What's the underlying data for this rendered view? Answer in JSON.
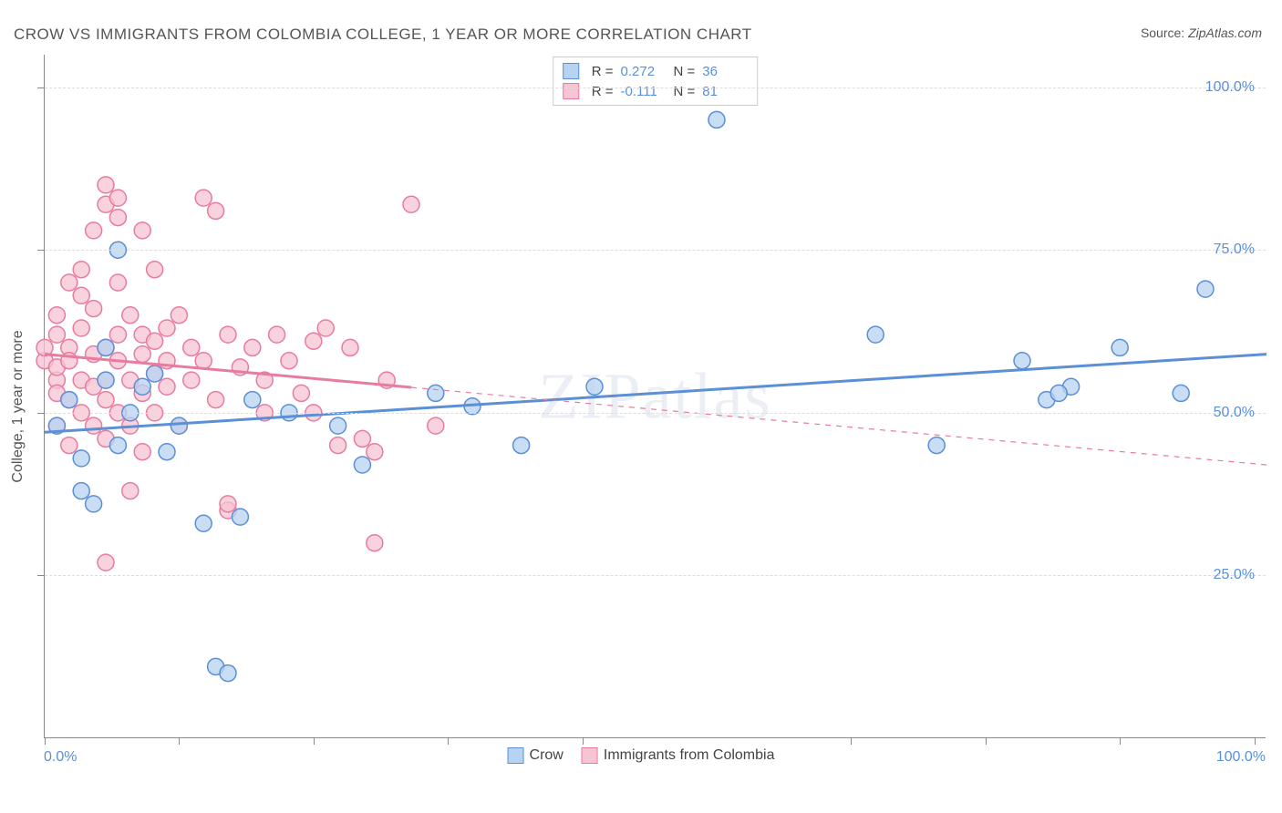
{
  "title": "CROW VS IMMIGRANTS FROM COLOMBIA COLLEGE, 1 YEAR OR MORE CORRELATION CHART",
  "source_label": "Source: ",
  "source_value": "ZipAtlas.com",
  "watermark": "ZIPatlas",
  "axis": {
    "y_title": "College, 1 year or more",
    "x_min_label": "0.0%",
    "x_max_label": "100.0%",
    "xlim": [
      0,
      100
    ],
    "ylim": [
      0,
      105
    ],
    "y_ticks": [
      25,
      50,
      75,
      100
    ],
    "y_tick_labels": [
      "25.0%",
      "50.0%",
      "75.0%",
      "100.0%"
    ],
    "x_ticks": [
      0,
      11,
      22,
      33,
      44,
      66,
      77,
      88,
      99
    ],
    "grid_color": "#dddddd",
    "axis_color": "#888888",
    "label_color": "#5b8fd6",
    "label_fontsize": 16
  },
  "series": [
    {
      "name": "Crow",
      "fill": "#b7d3f2",
      "stroke": "#5b8fd6",
      "marker_r": 9,
      "marker_opacity": 0.75,
      "r_value": "0.272",
      "n_value": "36",
      "trend": {
        "x1": 0,
        "y1": 47,
        "x2": 100,
        "y2": 59,
        "width": 3,
        "dash_after_x": null
      },
      "points": [
        [
          1,
          48
        ],
        [
          2,
          52
        ],
        [
          3,
          43
        ],
        [
          3,
          38
        ],
        [
          4,
          36
        ],
        [
          5,
          55
        ],
        [
          5,
          60
        ],
        [
          6,
          45
        ],
        [
          6,
          75
        ],
        [
          7,
          50
        ],
        [
          8,
          54
        ],
        [
          9,
          56
        ],
        [
          10,
          44
        ],
        [
          11,
          48
        ],
        [
          13,
          33
        ],
        [
          14,
          11
        ],
        [
          15,
          10
        ],
        [
          16,
          34
        ],
        [
          17,
          52
        ],
        [
          20,
          50
        ],
        [
          24,
          48
        ],
        [
          26,
          42
        ],
        [
          32,
          53
        ],
        [
          35,
          51
        ],
        [
          39,
          45
        ],
        [
          45,
          54
        ],
        [
          55,
          95
        ],
        [
          68,
          62
        ],
        [
          73,
          45
        ],
        [
          80,
          58
        ],
        [
          82,
          52
        ],
        [
          84,
          54
        ],
        [
          83,
          53
        ],
        [
          88,
          60
        ],
        [
          93,
          53
        ],
        [
          95,
          69
        ]
      ]
    },
    {
      "name": "Immigrants from Colombia",
      "fill": "#f6c4d2",
      "stroke": "#e87ba0",
      "marker_r": 9,
      "marker_opacity": 0.75,
      "r_value": "-0.111",
      "n_value": "81",
      "trend": {
        "x1": 0,
        "y1": 59,
        "x2": 100,
        "y2": 42,
        "width": 3,
        "dash_after_x": 30
      },
      "points": [
        [
          0,
          58
        ],
        [
          0,
          60
        ],
        [
          1,
          55
        ],
        [
          1,
          62
        ],
        [
          1,
          57
        ],
        [
          1,
          53
        ],
        [
          1,
          48
        ],
        [
          1,
          65
        ],
        [
          2,
          60
        ],
        [
          2,
          70
        ],
        [
          2,
          52
        ],
        [
          2,
          45
        ],
        [
          2,
          58
        ],
        [
          3,
          63
        ],
        [
          3,
          68
        ],
        [
          3,
          55
        ],
        [
          3,
          50
        ],
        [
          3,
          72
        ],
        [
          4,
          59
        ],
        [
          4,
          78
        ],
        [
          4,
          48
        ],
        [
          4,
          54
        ],
        [
          4,
          66
        ],
        [
          5,
          82
        ],
        [
          5,
          60
        ],
        [
          5,
          52
        ],
        [
          5,
          55
        ],
        [
          5,
          85
        ],
        [
          5,
          46
        ],
        [
          5,
          27
        ],
        [
          6,
          62
        ],
        [
          6,
          70
        ],
        [
          6,
          58
        ],
        [
          6,
          80
        ],
        [
          6,
          83
        ],
        [
          6,
          50
        ],
        [
          7,
          55
        ],
        [
          7,
          48
        ],
        [
          7,
          65
        ],
        [
          7,
          38
        ],
        [
          8,
          59
        ],
        [
          8,
          62
        ],
        [
          8,
          53
        ],
        [
          8,
          78
        ],
        [
          8,
          44
        ],
        [
          9,
          56
        ],
        [
          9,
          61
        ],
        [
          9,
          72
        ],
        [
          9,
          50
        ],
        [
          10,
          58
        ],
        [
          10,
          63
        ],
        [
          10,
          54
        ],
        [
          11,
          65
        ],
        [
          11,
          48
        ],
        [
          12,
          60
        ],
        [
          12,
          55
        ],
        [
          13,
          83
        ],
        [
          13,
          58
        ],
        [
          14,
          81
        ],
        [
          14,
          52
        ],
        [
          15,
          62
        ],
        [
          15,
          35
        ],
        [
          15,
          36
        ],
        [
          16,
          57
        ],
        [
          17,
          60
        ],
        [
          18,
          50
        ],
        [
          18,
          55
        ],
        [
          19,
          62
        ],
        [
          20,
          58
        ],
        [
          21,
          53
        ],
        [
          22,
          61
        ],
        [
          22,
          50
        ],
        [
          23,
          63
        ],
        [
          24,
          45
        ],
        [
          25,
          60
        ],
        [
          26,
          46
        ],
        [
          27,
          30
        ],
        [
          27,
          44
        ],
        [
          28,
          55
        ],
        [
          30,
          82
        ],
        [
          32,
          48
        ]
      ]
    }
  ],
  "bottom_legend": [
    {
      "label": "Crow",
      "fill": "#b7d3f2",
      "stroke": "#5b8fd6"
    },
    {
      "label": "Immigrants from Colombia",
      "fill": "#f6c4d2",
      "stroke": "#e87ba0"
    }
  ],
  "stat_labels": {
    "r": "R =",
    "n": "N ="
  }
}
